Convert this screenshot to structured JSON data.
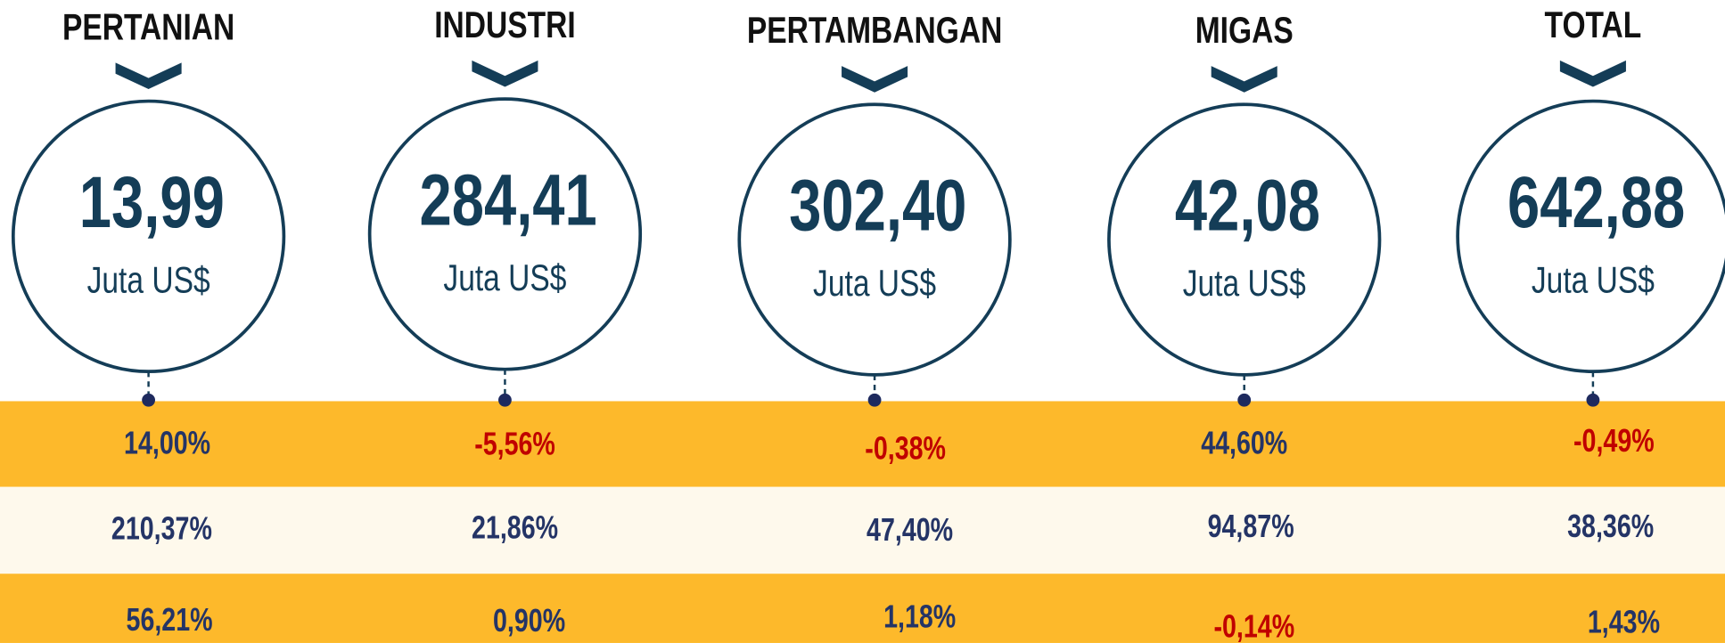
{
  "columns": [
    {
      "title": "PERTANIAN",
      "value": "13,99",
      "unit": "Juta US$",
      "rates": [
        "14,00%",
        "210,37%",
        "56,21%"
      ]
    },
    {
      "title": "INDUSTRI",
      "value": "284,41",
      "unit": "Juta US$",
      "rates": [
        "-5,56%",
        "21,86%",
        "0,90%"
      ]
    },
    {
      "title": "PERTAMBANGAN",
      "value": "302,40",
      "unit": "Juta US$",
      "rates": [
        "-0,38%",
        "47,40%",
        "1,18%"
      ]
    },
    {
      "title": "MIGAS",
      "value": "42,08",
      "unit": "Juta US$",
      "rates": [
        "44,60%",
        "94,87%",
        "-0,14%"
      ]
    },
    {
      "title": "TOTAL",
      "value": "642,88",
      "unit": "Juta US$",
      "rates": [
        "-0,49%",
        "38,36%",
        "1,43%"
      ]
    }
  ]
}
